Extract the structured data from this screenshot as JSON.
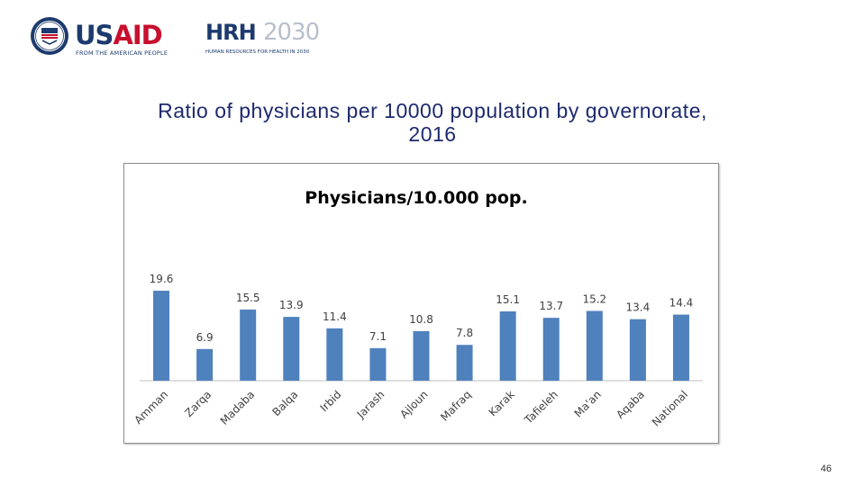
{
  "logos": {
    "usaid": {
      "word_main": "US",
      "word_accent": "AID",
      "tagline": "FROM THE AMERICAN PEOPLE"
    },
    "hrh": {
      "word": "HRH",
      "year": "2030",
      "tagline": "HUMAN RESOURCES FOR HEALTH IN 2030"
    }
  },
  "slide": {
    "title_line1": "Ratio of physicians per 10000 population by governorate,",
    "title_line2": "2016",
    "page_number": "46"
  },
  "colors": {
    "bar": "#4f81bd",
    "title": "#1e2a6e"
  },
  "chart_data": {
    "type": "bar",
    "title": "Physicians/10.000 pop.",
    "categories": [
      "Amman",
      "Zarqa",
      "Madaba",
      "Balqa",
      "Irbid",
      "Jarash",
      "Ajloun",
      "Mafraq",
      "Karak",
      "Tafieleh",
      "Ma'an",
      "Aqaba",
      "National"
    ],
    "values": [
      19.6,
      6.9,
      15.5,
      13.9,
      11.4,
      7.1,
      10.8,
      7.8,
      15.1,
      13.7,
      15.2,
      13.4,
      14.4
    ],
    "value_labels": [
      "19.6",
      "6.9",
      "15.5",
      "13.9",
      "11.4",
      "7.1",
      "10.8",
      "7.8",
      "15.1",
      "13.7",
      "15.2",
      "13.4",
      "14.4"
    ],
    "xlabel": "",
    "ylabel": "",
    "ylim": [
      0,
      20
    ],
    "grid": false,
    "legend": "none"
  }
}
